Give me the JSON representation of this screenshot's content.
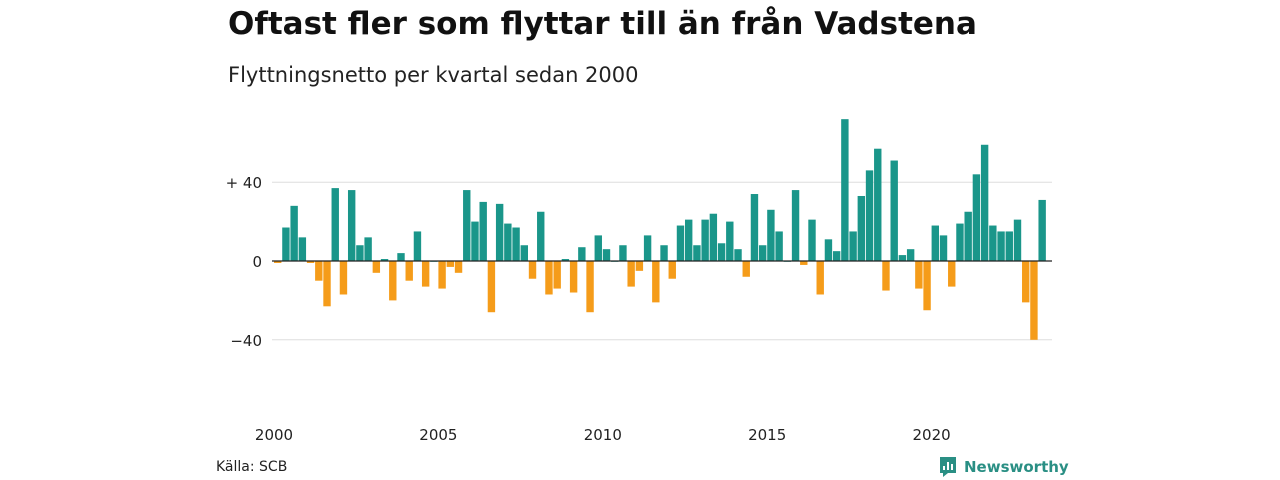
{
  "title": "Oftast fler som flyttar till än från Vadstena",
  "subtitle": "Flyttningsnetto per kvartal sedan 2000",
  "source": "Källa: SCB",
  "brand": "Newsworthy",
  "colors": {
    "positive": "#1a968a",
    "negative": "#f59c1a",
    "grid": "#dddddd",
    "axis": "#222222",
    "brand": "#2a8f84"
  },
  "chart_data": {
    "type": "bar",
    "title": "Oftast fler som flyttar till än från Vadstena",
    "subtitle": "Flyttningsnetto per kvartal sedan 2000",
    "x_start_year": 2000,
    "periods_per_year": 4,
    "ylim": [
      -60,
      75
    ],
    "y_ticks": [
      40,
      0,
      -40
    ],
    "y_tick_labels": [
      "+ 40",
      "0",
      "−40"
    ],
    "x_ticks": [
      2000,
      2005,
      2010,
      2015,
      2020
    ],
    "x_tick_labels": [
      "2000",
      "2005",
      "2010",
      "2015",
      "2020"
    ],
    "grid": true,
    "values": [
      -1,
      17,
      28,
      12,
      -1,
      -10,
      -23,
      37,
      -17,
      36,
      8,
      12,
      -6,
      1,
      -20,
      4,
      -10,
      15,
      -13,
      0,
      -14,
      -3,
      -6,
      36,
      20,
      30,
      -26,
      29,
      19,
      17,
      8,
      -9,
      25,
      -17,
      -14,
      1,
      -16,
      7,
      -26,
      13,
      6,
      0,
      8,
      -13,
      -5,
      13,
      -21,
      8,
      -9,
      18,
      21,
      8,
      21,
      24,
      9,
      20,
      6,
      -8,
      34,
      8,
      26,
      15,
      0,
      36,
      -2,
      21,
      -17,
      11,
      5,
      72,
      15,
      33,
      46,
      57,
      -15,
      51,
      3,
      6,
      -14,
      -25,
      18,
      13,
      -13,
      19,
      25,
      44,
      59,
      18,
      15,
      15,
      21,
      -21,
      -40,
      31
    ]
  }
}
